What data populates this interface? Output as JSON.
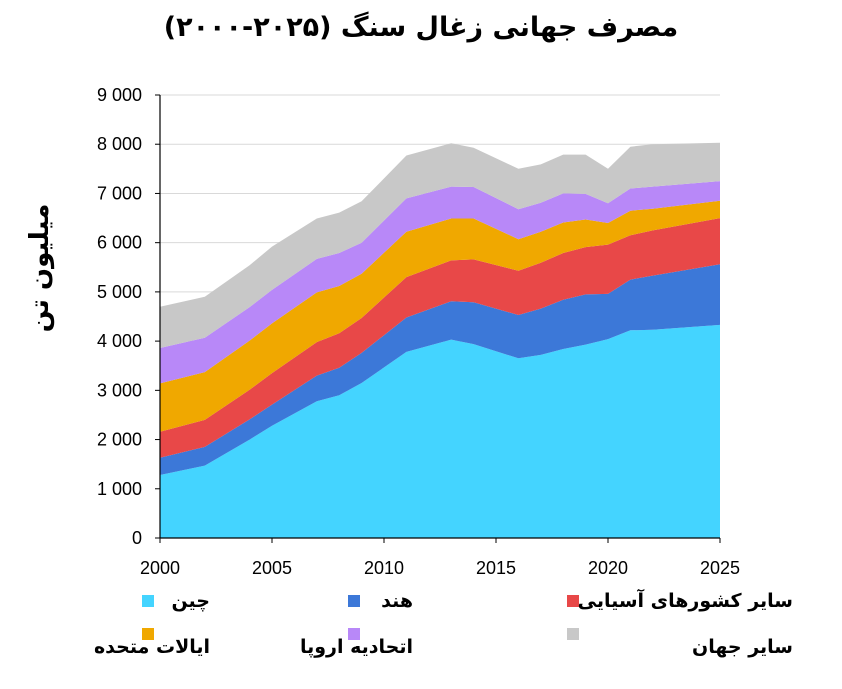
{
  "chart_data": {
    "type": "area",
    "stacked": true,
    "title": "مصرف جهانی زغال سنگ (۲۰۲۵-۲۰۰۰)",
    "ylabel": "میلیون تن",
    "xlabel": "",
    "x": [
      2000,
      2002,
      2004,
      2005,
      2007,
      2008,
      2009,
      2011,
      2013,
      2014,
      2016,
      2017,
      2018,
      2019,
      2020,
      2021,
      2022,
      2025
    ],
    "xlim": [
      2000,
      2025
    ],
    "ylim": [
      0,
      9000
    ],
    "x_ticks": [
      "2000",
      "2005",
      "2010",
      "2015",
      "2020",
      "2025"
    ],
    "y_ticks": [
      "0",
      "1 000",
      "2 000",
      "3 000",
      "4 000",
      "5 000",
      "6 000",
      "7 000",
      "8 000",
      "9 000"
    ],
    "grid": true,
    "legend_position": "bottom",
    "series": [
      {
        "name": "چین",
        "color": "#44D4FF",
        "values": [
          1280,
          1470,
          2000,
          2280,
          2780,
          2900,
          3150,
          3780,
          4030,
          3940,
          3650,
          3720,
          3840,
          3930,
          4040,
          4220,
          4230,
          4330
        ]
      },
      {
        "name": "هند",
        "color": "#3C78D8",
        "values": [
          350,
          380,
          410,
          430,
          520,
          560,
          610,
          700,
          780,
          850,
          880,
          940,
          1000,
          1020,
          920,
          1030,
          1100,
          1230
        ]
      },
      {
        "name": "سایر کشورهای آسیایی",
        "color": "#E84848",
        "values": [
          530,
          550,
          600,
          640,
          680,
          700,
          710,
          820,
          830,
          870,
          900,
          930,
          950,
          960,
          1000,
          900,
          920,
          940
        ]
      },
      {
        "name": "ایالات متحده",
        "color": "#F0A800",
        "values": [
          980,
          970,
          1000,
          1010,
          1010,
          960,
          900,
          920,
          850,
          830,
          640,
          630,
          620,
          560,
          440,
          500,
          440,
          350
        ]
      },
      {
        "name": "اتحادیه اروپا",
        "color": "#B888F8",
        "values": [
          720,
          700,
          680,
          680,
          680,
          670,
          630,
          680,
          650,
          640,
          610,
          590,
          590,
          520,
          400,
          450,
          450,
          400
        ]
      },
      {
        "name": "سایر جهان",
        "color": "#C8C8C8",
        "values": [
          840,
          830,
          850,
          880,
          820,
          820,
          840,
          870,
          880,
          800,
          820,
          780,
          790,
          800,
          700,
          850,
          860,
          780
        ]
      }
    ]
  }
}
